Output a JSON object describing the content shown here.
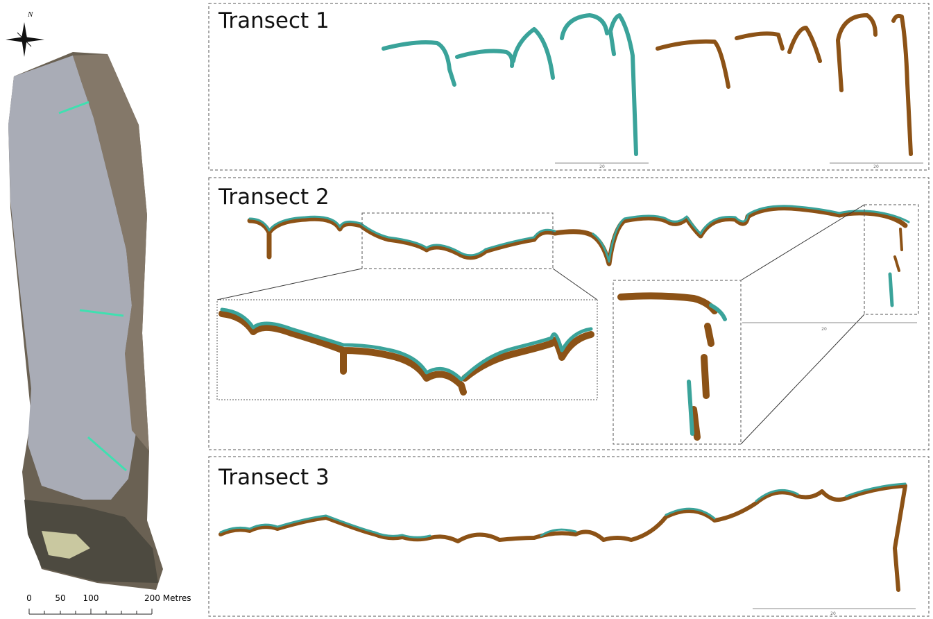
{
  "map": {
    "north": "N",
    "scale_labels": [
      "0",
      "50",
      "100",
      "200 Metres"
    ]
  },
  "panels": [
    {
      "title": "Transect 1",
      "scale_labels": [
        "20",
        "20"
      ]
    },
    {
      "title": "Transect 2",
      "scale_labels": [
        "20"
      ]
    },
    {
      "title": "Transect 3",
      "scale_labels": [
        "20"
      ]
    }
  ]
}
